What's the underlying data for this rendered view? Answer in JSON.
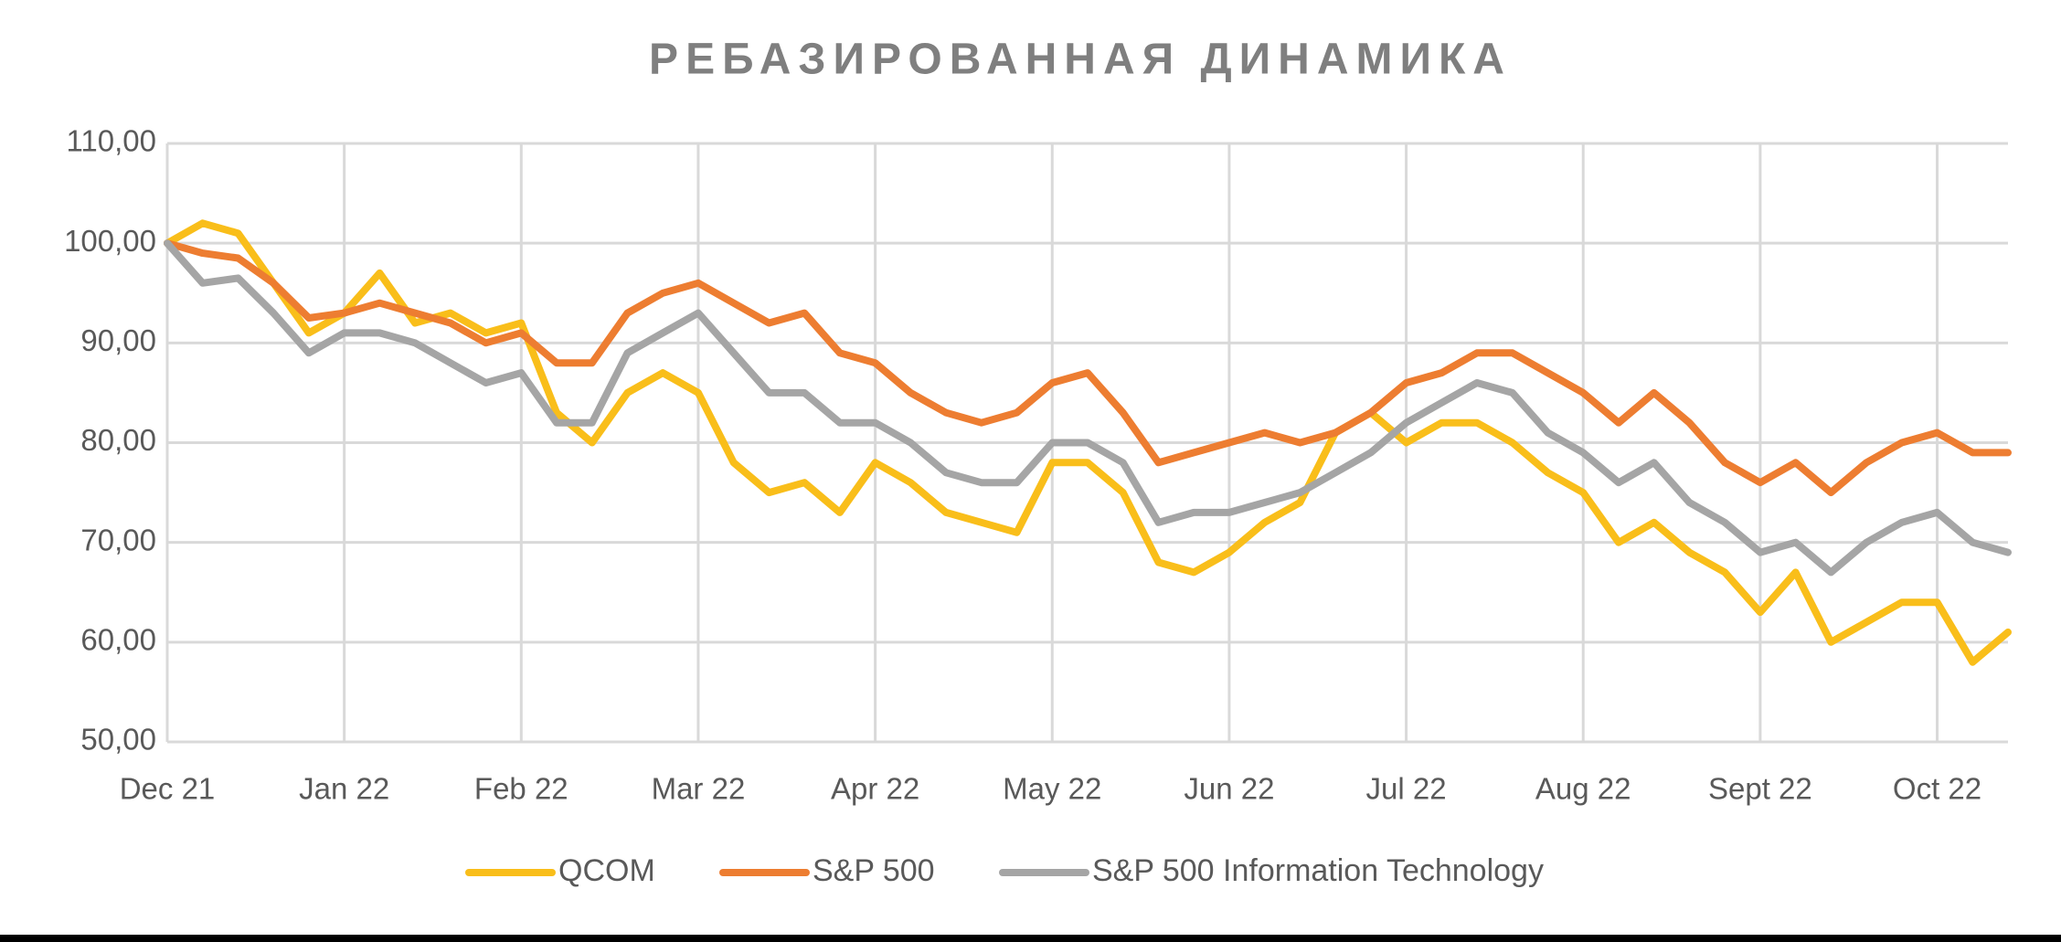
{
  "chart_data": {
    "type": "line",
    "title": "РЕБАЗИРОВАННАЯ ДИНАМИКА",
    "categories": [
      "Dec 21",
      null,
      null,
      null,
      null,
      "Jan 22",
      null,
      null,
      null,
      null,
      "Feb 22",
      null,
      null,
      null,
      null,
      "Mar 22",
      null,
      null,
      null,
      null,
      "Apr 22",
      null,
      null,
      null,
      null,
      "May 22",
      null,
      null,
      null,
      null,
      "Jun 22",
      null,
      null,
      null,
      null,
      "Jul 22",
      null,
      null,
      null,
      null,
      "Aug 22",
      null,
      null,
      null,
      null,
      "Sept 22",
      null,
      null,
      null,
      null,
      "Oct 22",
      null,
      null
    ],
    "series": [
      {
        "name": "QCOM",
        "color": "#F9BE1A",
        "values": [
          100,
          102,
          101,
          96,
          91,
          93,
          97,
          92,
          93,
          91,
          92,
          83,
          80,
          85,
          87,
          85,
          78,
          75,
          76,
          73,
          78,
          76,
          73,
          72,
          71,
          78,
          78,
          75,
          68,
          67,
          69,
          72,
          74,
          81,
          83,
          80,
          82,
          82,
          80,
          77,
          75,
          70,
          72,
          69,
          67,
          63,
          67,
          60,
          62,
          64,
          64,
          58,
          61
        ]
      },
      {
        "name": "S&P 500",
        "color": "#ED7D31",
        "values": [
          100,
          99,
          98.5,
          96,
          92.5,
          93,
          94,
          93,
          92,
          90,
          91,
          88,
          88,
          93,
          95,
          96,
          94,
          92,
          93,
          89,
          88,
          85,
          83,
          82,
          83,
          86,
          87,
          83,
          78,
          79,
          80,
          81,
          80,
          81,
          83,
          86,
          87,
          89,
          89,
          87,
          85,
          82,
          85,
          82,
          78,
          76,
          78,
          75,
          78,
          80,
          81,
          79,
          79
        ]
      },
      {
        "name": "S&P 500 Information Technology",
        "color": "#A5A5A5",
        "values": [
          100,
          96,
          96.5,
          93,
          89,
          91,
          91,
          90,
          88,
          86,
          87,
          82,
          82,
          89,
          91,
          93,
          89,
          85,
          85,
          82,
          82,
          80,
          77,
          76,
          76,
          80,
          80,
          78,
          72,
          73,
          73,
          74,
          75,
          77,
          79,
          82,
          84,
          86,
          85,
          81,
          79,
          76,
          78,
          74,
          72,
          69,
          70,
          67,
          70,
          72,
          73,
          70,
          69
        ]
      }
    ],
    "ylim": [
      50,
      110
    ],
    "yticks": [
      {
        "value": 50,
        "label": "50,00"
      },
      {
        "value": 60,
        "label": "60,00"
      },
      {
        "value": 70,
        "label": "70,00"
      },
      {
        "value": 80,
        "label": "80,00"
      },
      {
        "value": 90,
        "label": "90,00"
      },
      {
        "value": 100,
        "label": "100,00"
      },
      {
        "value": 110,
        "label": "110,00"
      }
    ],
    "grid": true
  }
}
